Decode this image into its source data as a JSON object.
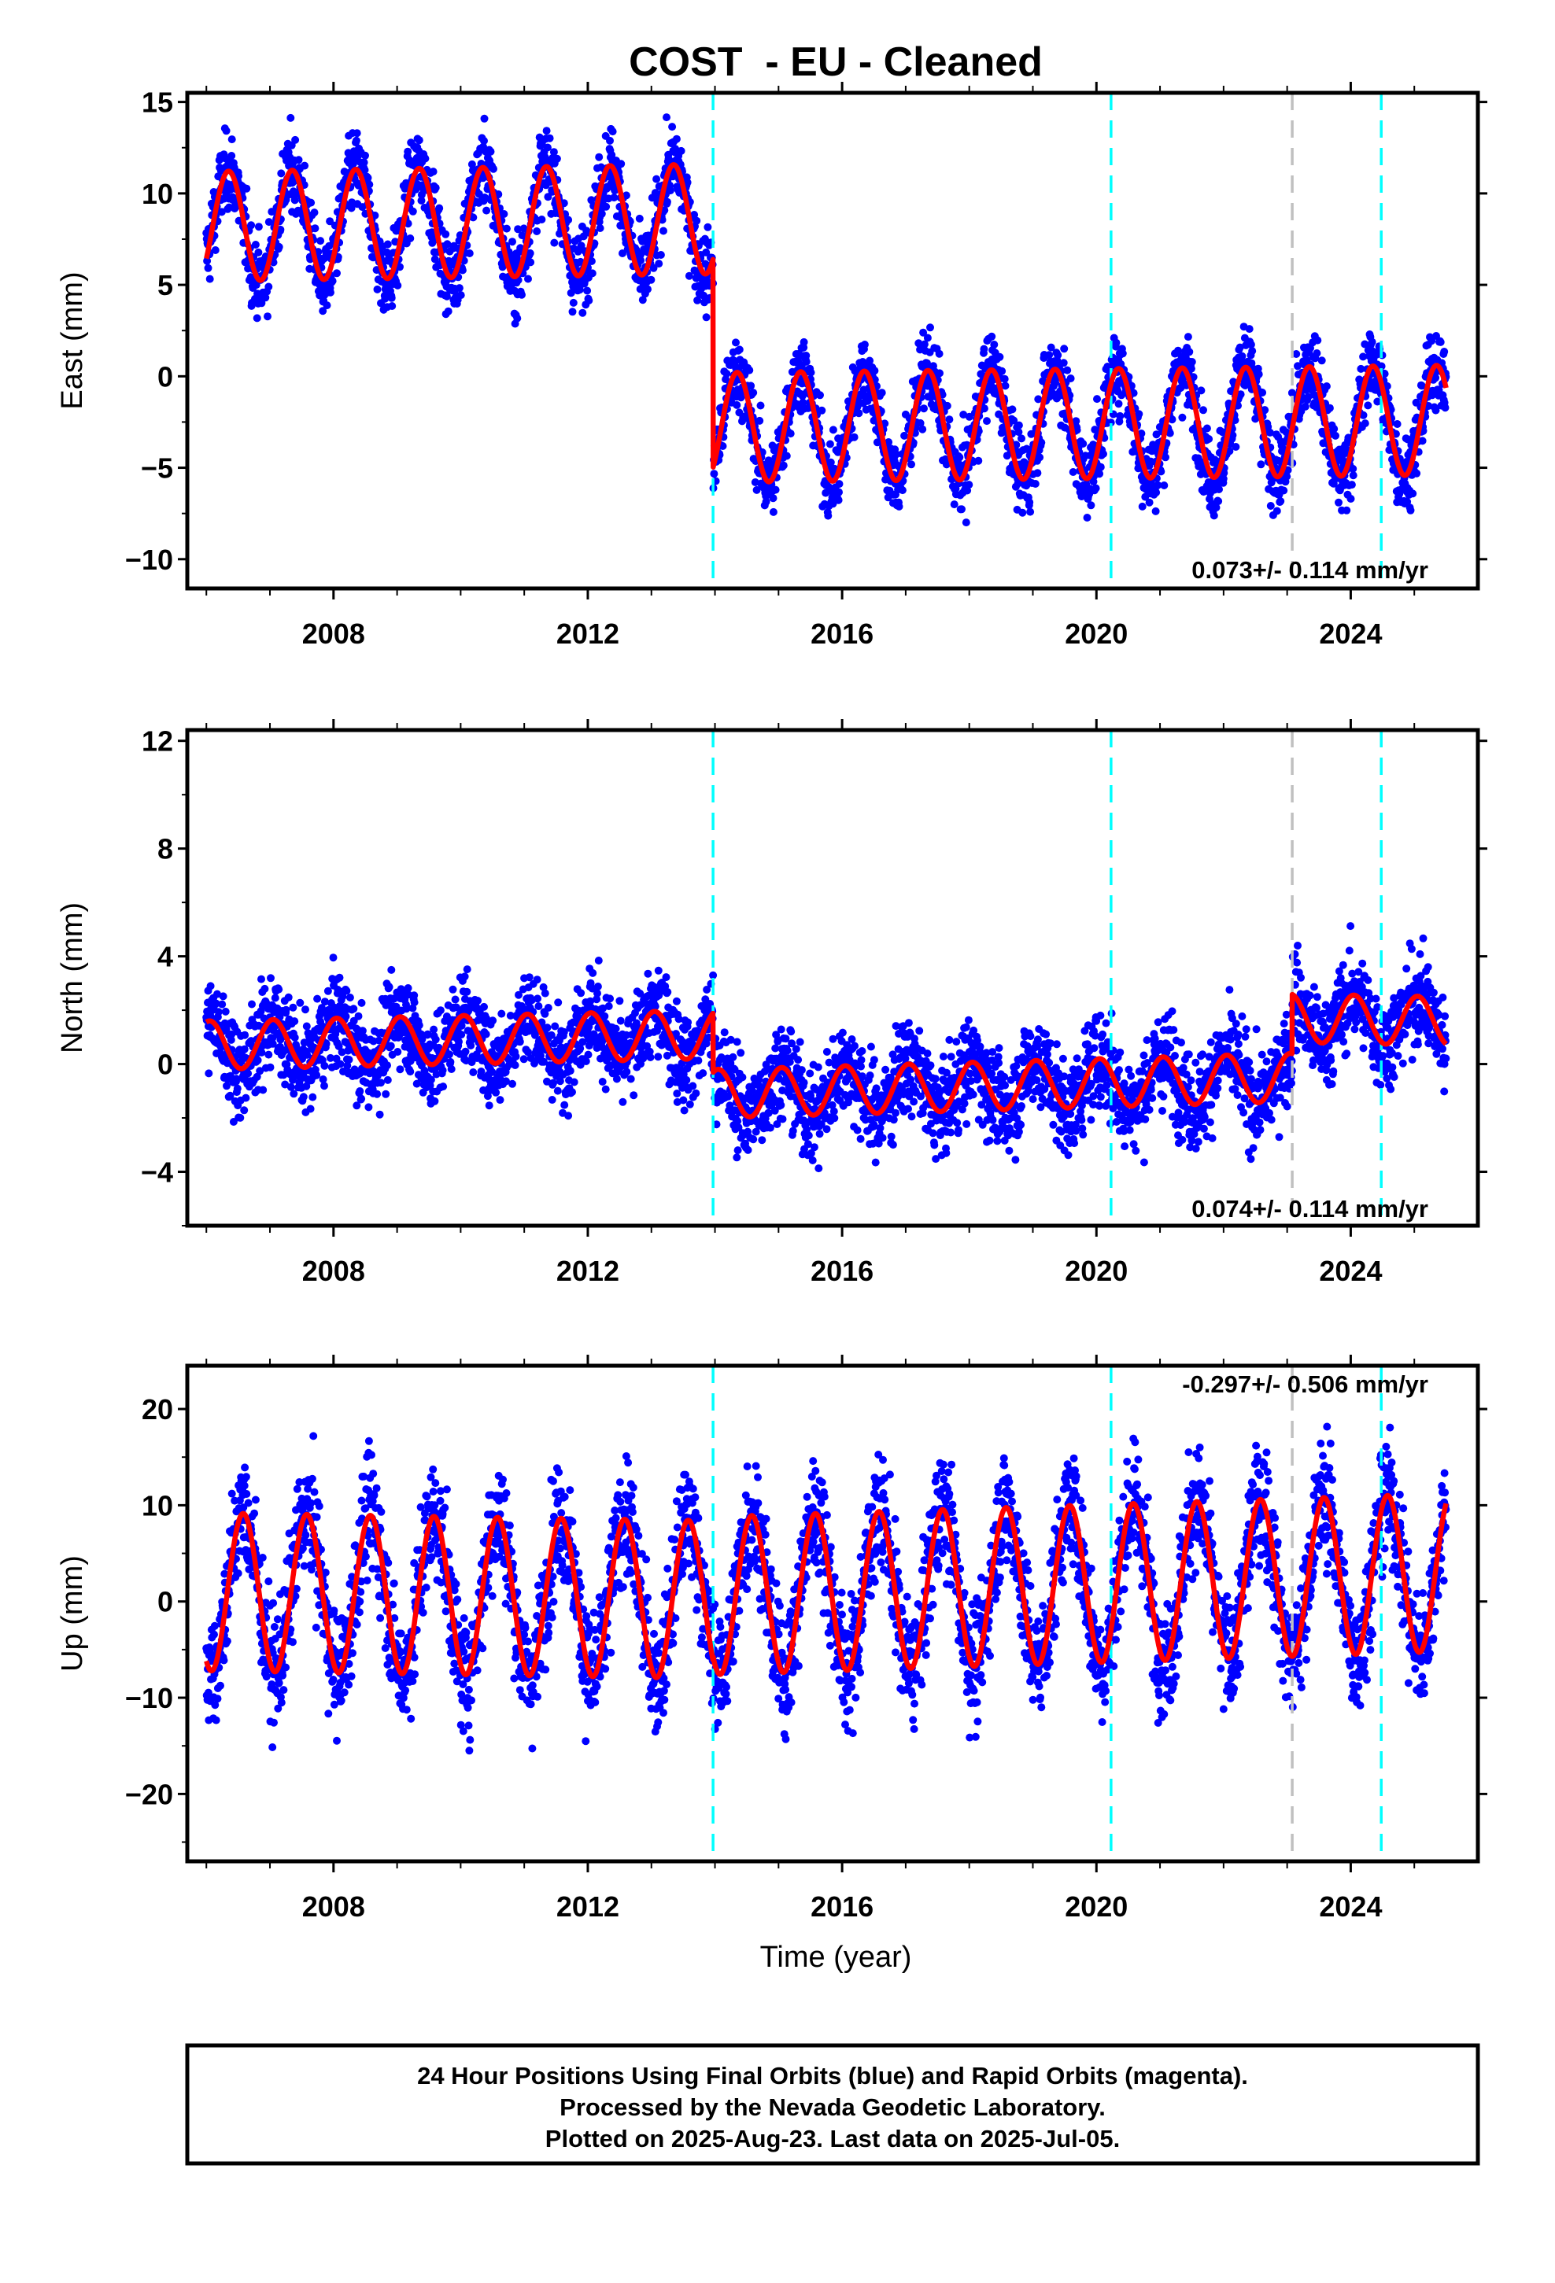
{
  "chart_data": {
    "title": "COST  - EU - Cleaned",
    "type": "scatter",
    "xlabel": "Time (year)",
    "xlim": [
      2005.7,
      2026.0
    ],
    "xticks": [
      2008,
      2012,
      2016,
      2020,
      2024
    ],
    "series_colors": {
      "observations": "#0000ff",
      "model": "#ff0000"
    },
    "vertical_lines": [
      {
        "x": 2013.97,
        "color": "#00ffff"
      },
      {
        "x": 2020.23,
        "color": "#00ffff"
      },
      {
        "x": 2023.08,
        "color": "#c0c0c0"
      },
      {
        "x": 2024.48,
        "color": "#00ffff"
      }
    ],
    "panels": [
      {
        "ylabel": "East (mm)",
        "ylim": [
          -11.6,
          15.5
        ],
        "yticks": [
          -10,
          -5,
          0,
          5,
          10,
          15
        ],
        "rate": "0.073+/- 0.114 mm/yr",
        "model": {
          "t0": 2006.0,
          "t1": 2025.5,
          "amplitude": 3.0,
          "peak_phase": 0.35,
          "offset_epoch": 2013.97,
          "segments": [
            {
              "start": 2006.0,
              "mean_start": 8.2,
              "mean_end": 8.6
            },
            {
              "start": 2013.97,
              "mean_start": -2.8,
              "mean_end": -2.4
            }
          ]
        }
      },
      {
        "ylabel": "North (mm)",
        "ylim": [
          -6.0,
          12.4
        ],
        "yticks": [
          -4,
          0,
          4,
          8,
          12
        ],
        "rate": "0.074+/- 0.114 mm/yr",
        "model": {
          "t0": 2006.0,
          "t1": 2025.5,
          "amplitude": 0.9,
          "peak_phase": 0.05,
          "offset_epoch": 2013.97,
          "segments": [
            {
              "start": 2006.0,
              "mean_start": 0.7,
              "mean_end": 1.1
            },
            {
              "start": 2013.97,
              "mean_start": -1.1,
              "mean_end": -0.5
            },
            {
              "start": 2023.08,
              "mean_start": 1.7,
              "mean_end": 1.6
            }
          ]
        }
      },
      {
        "ylabel": "Up (mm)",
        "ylim": [
          -27.0,
          24.5
        ],
        "yticks": [
          -20,
          -10,
          0,
          10,
          20
        ],
        "rate": "-0.297+/- 0.506 mm/yr",
        "model": {
          "t0": 2006.0,
          "t1": 2025.5,
          "amplitude": 8.2,
          "peak_phase": 0.58,
          "offset_epoch": 2013.97,
          "segments": [
            {
              "start": 2006.0,
              "mean_start": 1.0,
              "mean_end": 0.2
            },
            {
              "start": 2013.97,
              "mean_start": 0.6,
              "mean_end": 3.0
            }
          ]
        }
      }
    ],
    "footer": [
      "24 Hour Positions Using Final Orbits (blue) and Rapid Orbits (magenta).",
      "Processed by the Nevada Geodetic Laboratory.",
      "Plotted on 2025-Aug-23. Last data on 2025-Jul-05."
    ]
  }
}
